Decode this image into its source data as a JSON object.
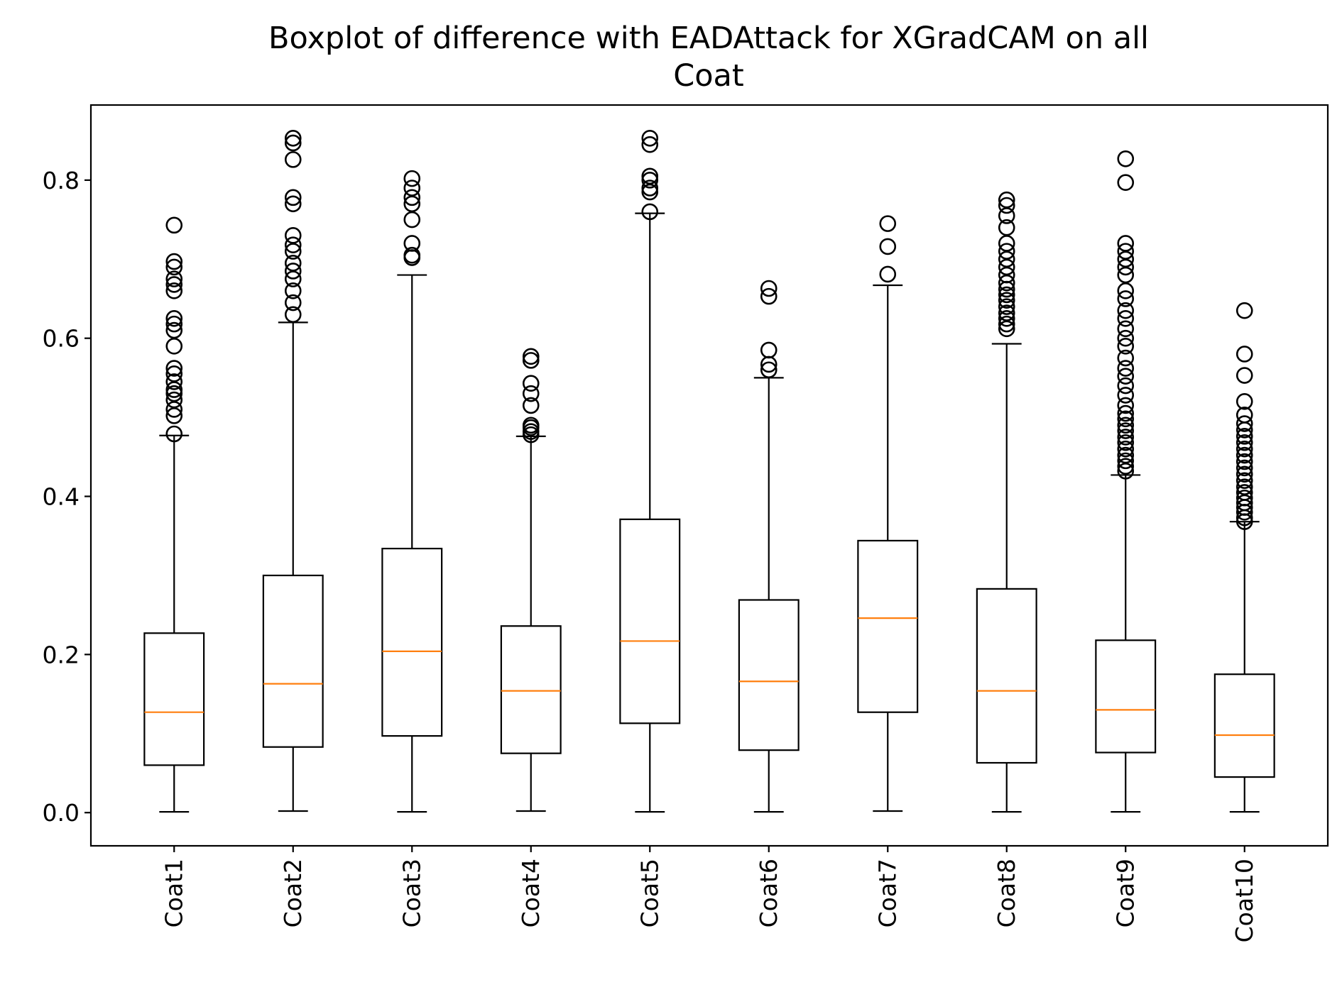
{
  "chart_data": {
    "type": "boxplot",
    "title": "Boxplot of difference with EADAttack for XGradCAM on all Coat",
    "title_lines": [
      "Boxplot of difference with EADAttack for XGradCAM on all",
      "Coat"
    ],
    "xlabel": "",
    "ylabel": "",
    "ylim": [
      -0.042,
      0.895
    ],
    "yticks": [
      0.0,
      0.2,
      0.4,
      0.6,
      0.8
    ],
    "ytick_labels": [
      "0.0",
      "0.2",
      "0.4",
      "0.6",
      "0.8"
    ],
    "grid": false,
    "legend": "none",
    "colors": {
      "box": "#000000",
      "median": "#ff7f0e",
      "outlier": "#000000",
      "background": "#ffffff"
    },
    "categories": [
      "Coat1",
      "Coat2",
      "Coat3",
      "Coat4",
      "Coat5",
      "Coat6",
      "Coat7",
      "Coat8",
      "Coat9",
      "Coat10"
    ],
    "boxes": [
      {
        "label": "Coat1",
        "whislo": 0.001,
        "q1": 0.06,
        "med": 0.127,
        "q3": 0.227,
        "whishi": 0.477,
        "fliers": [
          0.479,
          0.502,
          0.51,
          0.522,
          0.53,
          0.535,
          0.545,
          0.555,
          0.562,
          0.59,
          0.61,
          0.618,
          0.625,
          0.66,
          0.668,
          0.675,
          0.69,
          0.697,
          0.743
        ]
      },
      {
        "label": "Coat2",
        "whislo": 0.002,
        "q1": 0.083,
        "med": 0.163,
        "q3": 0.3,
        "whishi": 0.62,
        "fliers": [
          0.63,
          0.645,
          0.66,
          0.675,
          0.685,
          0.695,
          0.71,
          0.718,
          0.73,
          0.77,
          0.778,
          0.826,
          0.847,
          0.853
        ]
      },
      {
        "label": "Coat3",
        "whislo": 0.001,
        "q1": 0.097,
        "med": 0.204,
        "q3": 0.334,
        "whishi": 0.68,
        "fliers": [
          0.702,
          0.705,
          0.72,
          0.75,
          0.77,
          0.778,
          0.79,
          0.802
        ]
      },
      {
        "label": "Coat4",
        "whislo": 0.002,
        "q1": 0.075,
        "med": 0.154,
        "q3": 0.236,
        "whishi": 0.476,
        "fliers": [
          0.478,
          0.482,
          0.487,
          0.49,
          0.515,
          0.53,
          0.543,
          0.572,
          0.577
        ]
      },
      {
        "label": "Coat5",
        "whislo": 0.001,
        "q1": 0.113,
        "med": 0.217,
        "q3": 0.371,
        "whishi": 0.758,
        "fliers": [
          0.76,
          0.785,
          0.79,
          0.8,
          0.805,
          0.845,
          0.853
        ]
      },
      {
        "label": "Coat6",
        "whislo": 0.001,
        "q1": 0.079,
        "med": 0.166,
        "q3": 0.269,
        "whishi": 0.55,
        "fliers": [
          0.56,
          0.567,
          0.585,
          0.653,
          0.663
        ]
      },
      {
        "label": "Coat7",
        "whislo": 0.002,
        "q1": 0.127,
        "med": 0.246,
        "q3": 0.344,
        "whishi": 0.667,
        "fliers": [
          0.681,
          0.716,
          0.745
        ]
      },
      {
        "label": "Coat8",
        "whislo": 0.001,
        "q1": 0.063,
        "med": 0.154,
        "q3": 0.283,
        "whishi": 0.593,
        "fliers": [
          0.612,
          0.618,
          0.625,
          0.632,
          0.64,
          0.648,
          0.655,
          0.662,
          0.67,
          0.68,
          0.69,
          0.7,
          0.71,
          0.72,
          0.74,
          0.755,
          0.768,
          0.775
        ]
      },
      {
        "label": "Coat9",
        "whislo": 0.001,
        "q1": 0.076,
        "med": 0.13,
        "q3": 0.218,
        "whishi": 0.427,
        "fliers": [
          0.432,
          0.438,
          0.445,
          0.452,
          0.46,
          0.468,
          0.475,
          0.483,
          0.49,
          0.498,
          0.505,
          0.515,
          0.528,
          0.54,
          0.552,
          0.562,
          0.575,
          0.59,
          0.6,
          0.612,
          0.625,
          0.635,
          0.65,
          0.66,
          0.68,
          0.69,
          0.7,
          0.71,
          0.72,
          0.797,
          0.827
        ]
      },
      {
        "label": "Coat10",
        "whislo": 0.001,
        "q1": 0.045,
        "med": 0.098,
        "q3": 0.175,
        "whishi": 0.368,
        "fliers": [
          0.368,
          0.373,
          0.38,
          0.386,
          0.392,
          0.398,
          0.405,
          0.412,
          0.42,
          0.428,
          0.436,
          0.444,
          0.452,
          0.46,
          0.468,
          0.476,
          0.484,
          0.492,
          0.503,
          0.52,
          0.553,
          0.58,
          0.635
        ]
      }
    ]
  }
}
